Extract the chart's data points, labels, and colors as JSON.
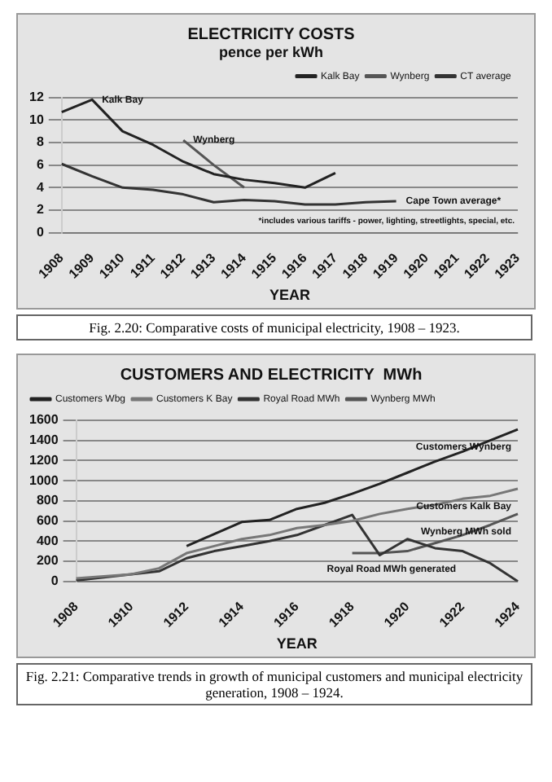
{
  "chart_data": [
    {
      "type": "line",
      "title": "ELECTRICITY COSTS",
      "subtitle": "pence per kWh",
      "xlabel": "YEAR",
      "categories": [
        "1908",
        "1909",
        "1910",
        "1911",
        "1912",
        "1913",
        "1914",
        "1915",
        "1916",
        "1917",
        "1918",
        "1919",
        "1920",
        "1921",
        "1922",
        "1923"
      ],
      "series": [
        {
          "name": "Kalk Bay",
          "color": "#222222",
          "values": [
            10.7,
            11.8,
            9.0,
            7.8,
            6.3,
            5.2,
            4.7,
            4.4,
            4.0,
            5.3,
            null,
            null,
            null,
            null,
            null,
            null
          ]
        },
        {
          "name": "Wynberg",
          "color": "#555555",
          "values": [
            null,
            null,
            null,
            null,
            8.2,
            6.0,
            4.0,
            null,
            null,
            null,
            null,
            null,
            null,
            null,
            null,
            null
          ]
        },
        {
          "name": "CT average",
          "color": "#333333",
          "values": [
            6.1,
            5.0,
            4.0,
            3.8,
            3.4,
            2.7,
            2.9,
            2.8,
            2.5,
            2.5,
            2.7,
            2.8,
            null,
            null,
            null,
            null
          ]
        }
      ],
      "ylim": [
        0,
        12
      ],
      "yticks": [
        0,
        2,
        4,
        6,
        8,
        10,
        12
      ],
      "grid": "y",
      "legend": "top right",
      "marker": "none",
      "line_style": "solid",
      "annotations": [
        {
          "text": "Kalk Bay",
          "x": "1909",
          "y": 11.8
        },
        {
          "text": "Wynberg",
          "x": "1912",
          "y": 8.2
        },
        {
          "text": "Cape Town average*",
          "x": "1919",
          "y": 2.8
        },
        "*includes various tariffs - power, lighting, streetlights, special, etc.",
        "Fig. 2.20: Comparative costs of municipal electricity, 1908 – 1923."
      ]
    },
    {
      "type": "line",
      "title": "CUSTOMERS AND ELECTRICITY  MWh",
      "xlabel": "YEAR",
      "categories": [
        "1908",
        null,
        "1910",
        null,
        "1912",
        null,
        "1914",
        null,
        "1916",
        null,
        "1918",
        null,
        "1920",
        null,
        "1922",
        null,
        "1924"
      ],
      "series": [
        {
          "name": "Customers Wbg",
          "color": "#222222",
          "values": [
            null,
            null,
            null,
            null,
            350,
            470,
            590,
            610,
            720,
            780,
            870,
            970,
            1080,
            1190,
            1290,
            1400,
            1510
          ]
        },
        {
          "name": "Customers K Bay",
          "color": "#777777",
          "values": [
            30,
            50,
            70,
            130,
            280,
            350,
            420,
            460,
            530,
            560,
            600,
            670,
            720,
            760,
            820,
            850,
            920
          ]
        },
        {
          "name": "Royal Road MWh",
          "color": "#333333",
          "values": [
            10,
            40,
            70,
            100,
            230,
            300,
            350,
            400,
            460,
            560,
            660,
            260,
            420,
            330,
            300,
            180,
            0
          ]
        },
        {
          "name": "Wynberg MWh",
          "color": "#555555",
          "values": [
            null,
            null,
            null,
            null,
            null,
            null,
            null,
            null,
            null,
            null,
            280,
            280,
            300,
            380,
            460,
            560,
            670
          ]
        }
      ],
      "ylim": [
        0,
        1600
      ],
      "yticks": [
        0,
        200,
        400,
        600,
        800,
        1000,
        1200,
        1400,
        1600
      ],
      "grid": "y",
      "legend": "top left",
      "marker": "none",
      "line_style": "solid",
      "annotations": [
        {
          "text": "Customers Wynberg",
          "x": "1924",
          "y": 1510
        },
        {
          "text": "Customers Kalk Bay",
          "x": "1924",
          "y": 920
        },
        {
          "text": "Wynberg MWh sold",
          "x": "1924",
          "y": 670
        },
        {
          "text": "Royal Road MWh generated",
          "x": "1922",
          "y": 300
        },
        "Fig. 2.21: Comparative trends in growth of municipal customers and municipal electricity generation, 1908 – 1924."
      ]
    }
  ]
}
